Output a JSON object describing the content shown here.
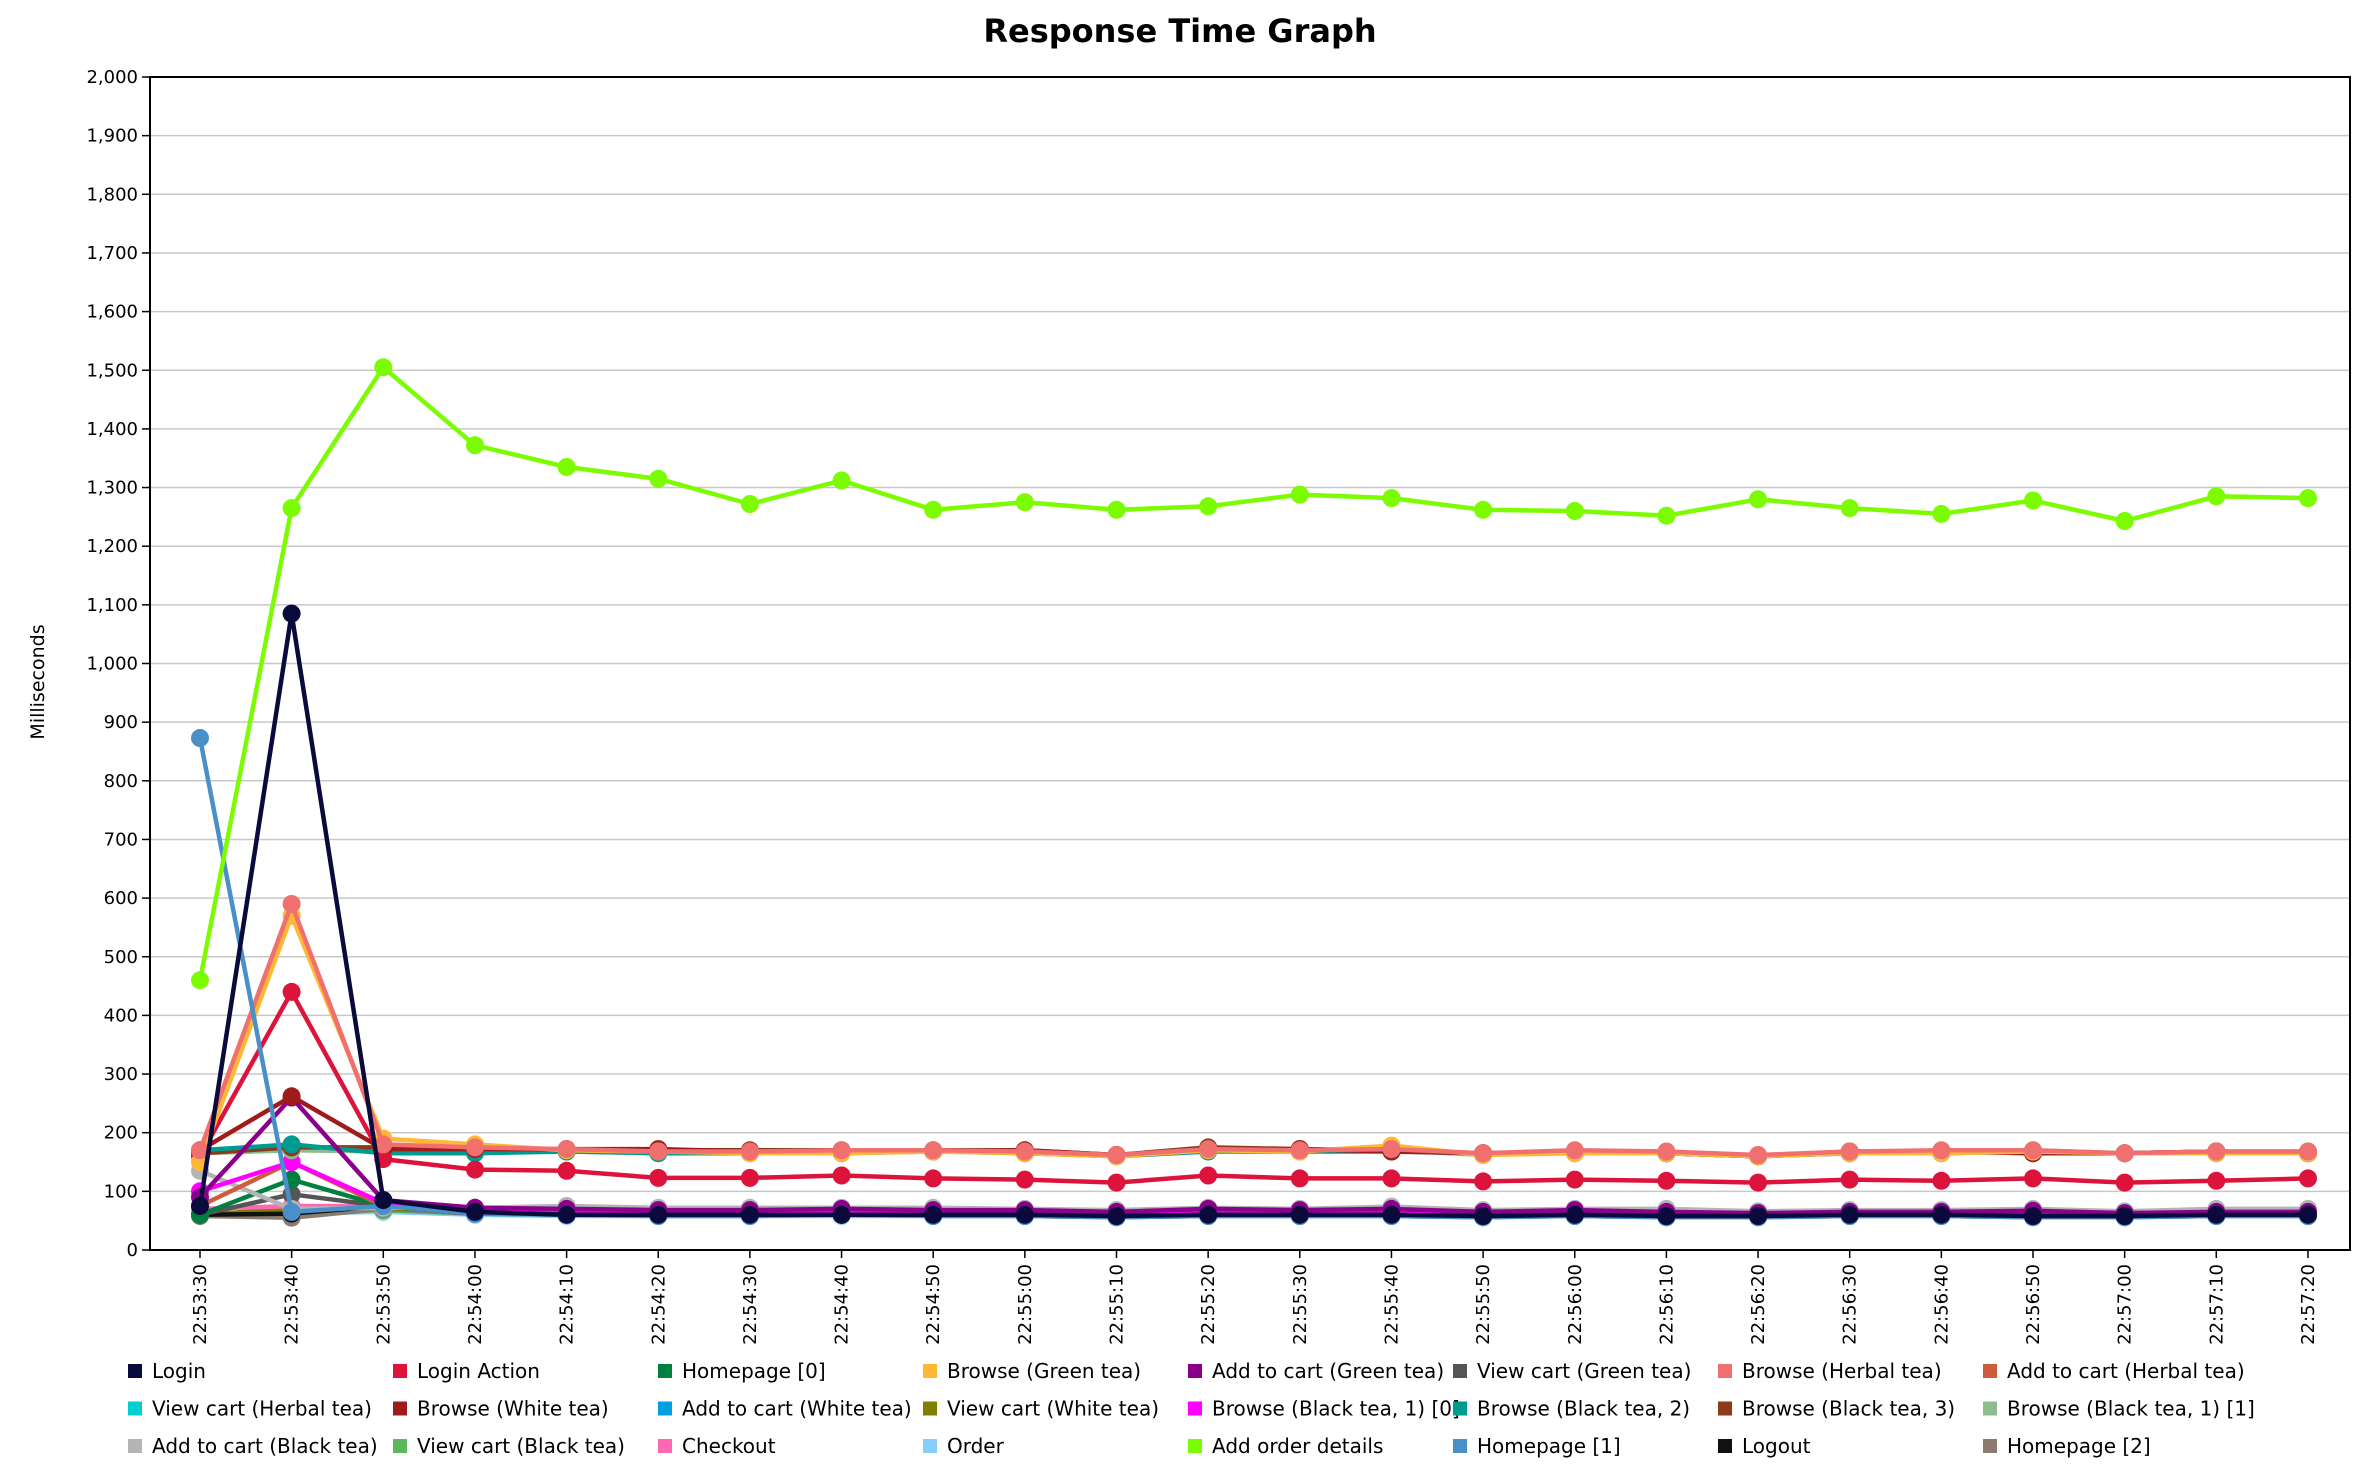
{
  "chart_data": {
    "type": "line",
    "title": "Response Time Graph",
    "xlabel": "",
    "ylabel": "Milliseconds",
    "ylim": [
      0,
      2000
    ],
    "ytick_step": 100,
    "yticks": [
      "0",
      "100",
      "200",
      "300",
      "400",
      "500",
      "600",
      "700",
      "800",
      "900",
      "1,000",
      "1,100",
      "1,200",
      "1,300",
      "1,400",
      "1,500",
      "1,600",
      "1,700",
      "1,800",
      "1,900",
      "2,000"
    ],
    "grid": true,
    "legend_position": "bottom",
    "x": [
      "22:53:30",
      "22:53:40",
      "22:53:50",
      "22:54:00",
      "22:54:10",
      "22:54:20",
      "22:54:30",
      "22:54:40",
      "22:54:50",
      "22:55:00",
      "22:55:10",
      "22:55:20",
      "22:55:30",
      "22:55:40",
      "22:55:50",
      "22:56:00",
      "22:56:10",
      "22:56:20",
      "22:56:30",
      "22:56:40",
      "22:56:50",
      "22:57:00",
      "22:57:10",
      "22:57:20"
    ],
    "series": [
      {
        "name": "Login",
        "color": "#0a0a3c",
        "values": [
          75,
          1085,
          85,
          65,
          60,
          60,
          60,
          60,
          60,
          60,
          58,
          60,
          60,
          60,
          58,
          60,
          58,
          58,
          60,
          60,
          58,
          58,
          60,
          60
        ]
      },
      {
        "name": "Login Action",
        "color": "#dc143c",
        "values": [
          160,
          440,
          155,
          137,
          135,
          123,
          123,
          127,
          122,
          120,
          115,
          127,
          122,
          122,
          117,
          120,
          118,
          115,
          120,
          118,
          122,
          115,
          118,
          122
        ]
      },
      {
        "name": "Homepage [0]",
        "color": "#008040",
        "values": [
          60,
          120,
          75,
          65,
          62,
          60,
          60,
          60,
          60,
          60,
          58,
          60,
          60,
          60,
          58,
          60,
          58,
          58,
          60,
          60,
          58,
          58,
          60,
          60
        ]
      },
      {
        "name": "Browse (Green tea)",
        "color": "#ffb833",
        "values": [
          150,
          570,
          190,
          180,
          170,
          168,
          165,
          165,
          168,
          165,
          160,
          170,
          168,
          178,
          162,
          165,
          165,
          160,
          165,
          165,
          168,
          165,
          165,
          165
        ]
      },
      {
        "name": "Add to cart (Green tea)",
        "color": "#8b008b",
        "values": [
          90,
          260,
          85,
          72,
          70,
          68,
          68,
          70,
          68,
          68,
          65,
          70,
          68,
          70,
          65,
          68,
          65,
          63,
          65,
          65,
          67,
          63,
          65,
          65
        ]
      },
      {
        "name": "View cart (Green tea)",
        "color": "#555555",
        "values": [
          60,
          95,
          75,
          65,
          65,
          62,
          62,
          63,
          62,
          62,
          60,
          63,
          62,
          62,
          60,
          62,
          60,
          60,
          62,
          62,
          62,
          60,
          62,
          62
        ]
      },
      {
        "name": "Browse (Herbal tea)",
        "color": "#f07070",
        "values": [
          170,
          590,
          180,
          175,
          172,
          168,
          168,
          170,
          170,
          168,
          162,
          172,
          170,
          172,
          165,
          170,
          168,
          162,
          168,
          170,
          170,
          165,
          168,
          168
        ]
      },
      {
        "name": "Add to cart (Herbal tea)",
        "color": "#cd5c3c",
        "values": [
          75,
          150,
          75,
          68,
          66,
          64,
          64,
          65,
          64,
          64,
          62,
          65,
          64,
          65,
          62,
          64,
          62,
          60,
          62,
          63,
          64,
          60,
          62,
          62
        ]
      },
      {
        "name": "View cart (Herbal tea)",
        "color": "#00ced1",
        "values": [
          60,
          65,
          68,
          62,
          62,
          60,
          60,
          60,
          60,
          60,
          58,
          60,
          60,
          60,
          58,
          60,
          58,
          58,
          60,
          60,
          58,
          58,
          60,
          60
        ]
      },
      {
        "name": "Browse (White tea)",
        "color": "#a01c1c",
        "values": [
          170,
          262,
          172,
          172,
          172,
          172,
          168,
          168,
          168,
          170,
          162,
          172,
          172,
          168,
          165,
          168,
          165,
          160,
          168,
          168,
          165,
          165,
          168,
          165
        ]
      },
      {
        "name": "Add to cart (White tea)",
        "color": "#00a0e0",
        "values": [
          60,
          65,
          70,
          62,
          60,
          58,
          58,
          60,
          58,
          58,
          56,
          58,
          58,
          58,
          56,
          58,
          56,
          56,
          58,
          58,
          56,
          56,
          58,
          58
        ]
      },
      {
        "name": "View cart (White tea)",
        "color": "#808000",
        "values": [
          60,
          70,
          72,
          64,
          62,
          60,
          60,
          60,
          60,
          60,
          58,
          60,
          60,
          60,
          58,
          60,
          58,
          58,
          60,
          60,
          58,
          58,
          60,
          60
        ]
      },
      {
        "name": "Browse (Black tea, 1) [0]",
        "color": "#ff00ff",
        "values": [
          100,
          150,
          80,
          70,
          68,
          66,
          66,
          68,
          66,
          66,
          63,
          68,
          66,
          68,
          63,
          66,
          63,
          62,
          64,
          64,
          65,
          62,
          64,
          64
        ]
      },
      {
        "name": "Browse (Black tea, 2)",
        "color": "#009b8f",
        "values": [
          170,
          180,
          165,
          165,
          168,
          165,
          165,
          165,
          168,
          165,
          160,
          168,
          168,
          168,
          165,
          165,
          165,
          160,
          165,
          165,
          168,
          165,
          165,
          165
        ]
      },
      {
        "name": "Browse (Black tea, 3)",
        "color": "#8b3a1a",
        "values": [
          165,
          175,
          175,
          172,
          170,
          170,
          170,
          170,
          170,
          170,
          162,
          175,
          172,
          170,
          165,
          168,
          165,
          160,
          165,
          168,
          165,
          165,
          168,
          165
        ]
      },
      {
        "name": "Browse (Black tea, 1) [1]",
        "color": "#8fbc8f",
        "values": [
          165,
          170,
          168,
          168,
          168,
          165,
          168,
          168,
          170,
          165,
          160,
          170,
          170,
          170,
          162,
          168,
          165,
          160,
          165,
          165,
          170,
          165,
          168,
          168
        ]
      },
      {
        "name": "Add to cart (Black tea)",
        "color": "#b4b4b4",
        "values": [
          135,
          70,
          72,
          72,
          75,
          72,
          72,
          72,
          72,
          70,
          68,
          72,
          70,
          74,
          68,
          70,
          70,
          66,
          68,
          68,
          70,
          66,
          70,
          70
        ]
      },
      {
        "name": "View cart (Black tea)",
        "color": "#5cb85c",
        "values": [
          60,
          65,
          68,
          62,
          60,
          60,
          60,
          60,
          60,
          60,
          58,
          60,
          60,
          60,
          58,
          60,
          58,
          58,
          60,
          60,
          58,
          58,
          60,
          60
        ]
      },
      {
        "name": "Checkout",
        "color": "#ff69b4",
        "values": [
          70,
          75,
          75,
          68,
          66,
          64,
          64,
          65,
          64,
          64,
          62,
          66,
          64,
          66,
          62,
          64,
          62,
          60,
          62,
          63,
          64,
          60,
          62,
          62
        ]
      },
      {
        "name": "Order",
        "color": "#87cefa",
        "values": [
          60,
          62,
          65,
          60,
          58,
          58,
          58,
          58,
          58,
          58,
          56,
          58,
          58,
          58,
          56,
          58,
          56,
          56,
          58,
          58,
          56,
          56,
          58,
          58
        ]
      },
      {
        "name": "Add order details",
        "color": "#7cfc00",
        "values": [
          460,
          1265,
          1505,
          1372,
          1335,
          1315,
          1272,
          1312,
          1262,
          1275,
          1262,
          1268,
          1288,
          1282,
          1262,
          1260,
          1252,
          1280,
          1265,
          1255,
          1278,
          1243,
          1285,
          1282
        ]
      },
      {
        "name": "Homepage [1]",
        "color": "#4a90c8",
        "values": [
          873,
          65,
          75,
          62,
          60,
          58,
          58,
          60,
          58,
          58,
          56,
          58,
          58,
          58,
          56,
          58,
          56,
          56,
          58,
          58,
          56,
          56,
          58,
          58
        ]
      },
      {
        "name": "Logout",
        "color": "#111111",
        "values": [
          60,
          62,
          75,
          62,
          62,
          60,
          60,
          60,
          60,
          60,
          58,
          60,
          60,
          60,
          58,
          60,
          58,
          58,
          60,
          60,
          58,
          58,
          60,
          60
        ]
      },
      {
        "name": "Homepage [2]",
        "color": "#8b7b70",
        "values": [
          58,
          55,
          70,
          62,
          62,
          60,
          60,
          60,
          60,
          60,
          58,
          60,
          60,
          60,
          58,
          60,
          58,
          58,
          60,
          60,
          58,
          58,
          60,
          60
        ]
      }
    ]
  }
}
